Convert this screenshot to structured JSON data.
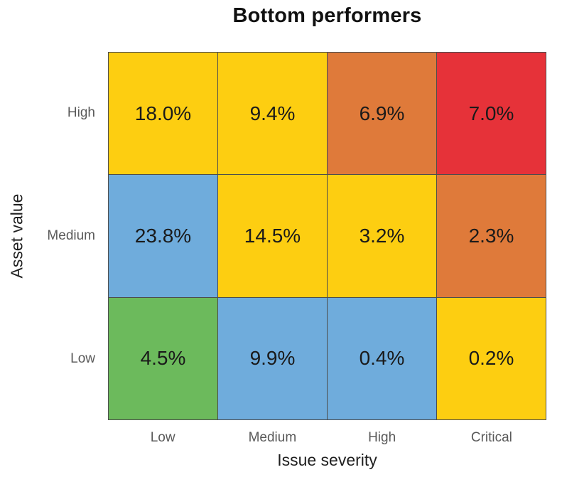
{
  "chart_data": {
    "type": "heatmap",
    "title": "Bottom performers",
    "xlabel": "Issue severity",
    "ylabel": "Asset value",
    "x_categories": [
      "Low",
      "Medium",
      "High",
      "Critical"
    ],
    "y_categories": [
      "High",
      "Medium",
      "Low"
    ],
    "series": [
      {
        "name": "High",
        "values": [
          18.0,
          9.4,
          6.9,
          7.0
        ]
      },
      {
        "name": "Medium",
        "values": [
          23.8,
          14.5,
          3.2,
          2.3
        ]
      },
      {
        "name": "Low",
        "values": [
          4.5,
          9.9,
          0.4,
          0.2
        ]
      }
    ],
    "cells": [
      {
        "row": "High",
        "col": "Low",
        "value": 18.0,
        "label": "18.0%",
        "color": "#FDCE11"
      },
      {
        "row": "High",
        "col": "Medium",
        "value": 9.4,
        "label": "9.4%",
        "color": "#FDCE11"
      },
      {
        "row": "High",
        "col": "High",
        "value": 6.9,
        "label": "6.9%",
        "color": "#DF7A3A"
      },
      {
        "row": "High",
        "col": "Critical",
        "value": 7.0,
        "label": "7.0%",
        "color": "#E63239"
      },
      {
        "row": "Medium",
        "col": "Low",
        "value": 23.8,
        "label": "23.8%",
        "color": "#6FACDC"
      },
      {
        "row": "Medium",
        "col": "Medium",
        "value": 14.5,
        "label": "14.5%",
        "color": "#FDCE11"
      },
      {
        "row": "Medium",
        "col": "High",
        "value": 3.2,
        "label": "3.2%",
        "color": "#FDCE11"
      },
      {
        "row": "Medium",
        "col": "Critical",
        "value": 2.3,
        "label": "2.3%",
        "color": "#DF7A3A"
      },
      {
        "row": "Low",
        "col": "Low",
        "value": 4.5,
        "label": "4.5%",
        "color": "#6CBA5C"
      },
      {
        "row": "Low",
        "col": "Medium",
        "value": 9.9,
        "label": "9.9%",
        "color": "#6FACDC"
      },
      {
        "row": "Low",
        "col": "High",
        "value": 0.4,
        "label": "0.4%",
        "color": "#6FACDC"
      },
      {
        "row": "Low",
        "col": "Critical",
        "value": 0.2,
        "label": "0.2%",
        "color": "#FDCE11"
      }
    ],
    "palette": {
      "green": "#6CBA5C",
      "blue": "#6FACDC",
      "yellow": "#FDCE11",
      "orange": "#DF7A3A",
      "red": "#E63239"
    },
    "grid_line_color": "#4D4D4D",
    "tick_label_color": "#595959",
    "value_label_color": "#1A1A1A",
    "legend": "none",
    "grid": "on"
  }
}
